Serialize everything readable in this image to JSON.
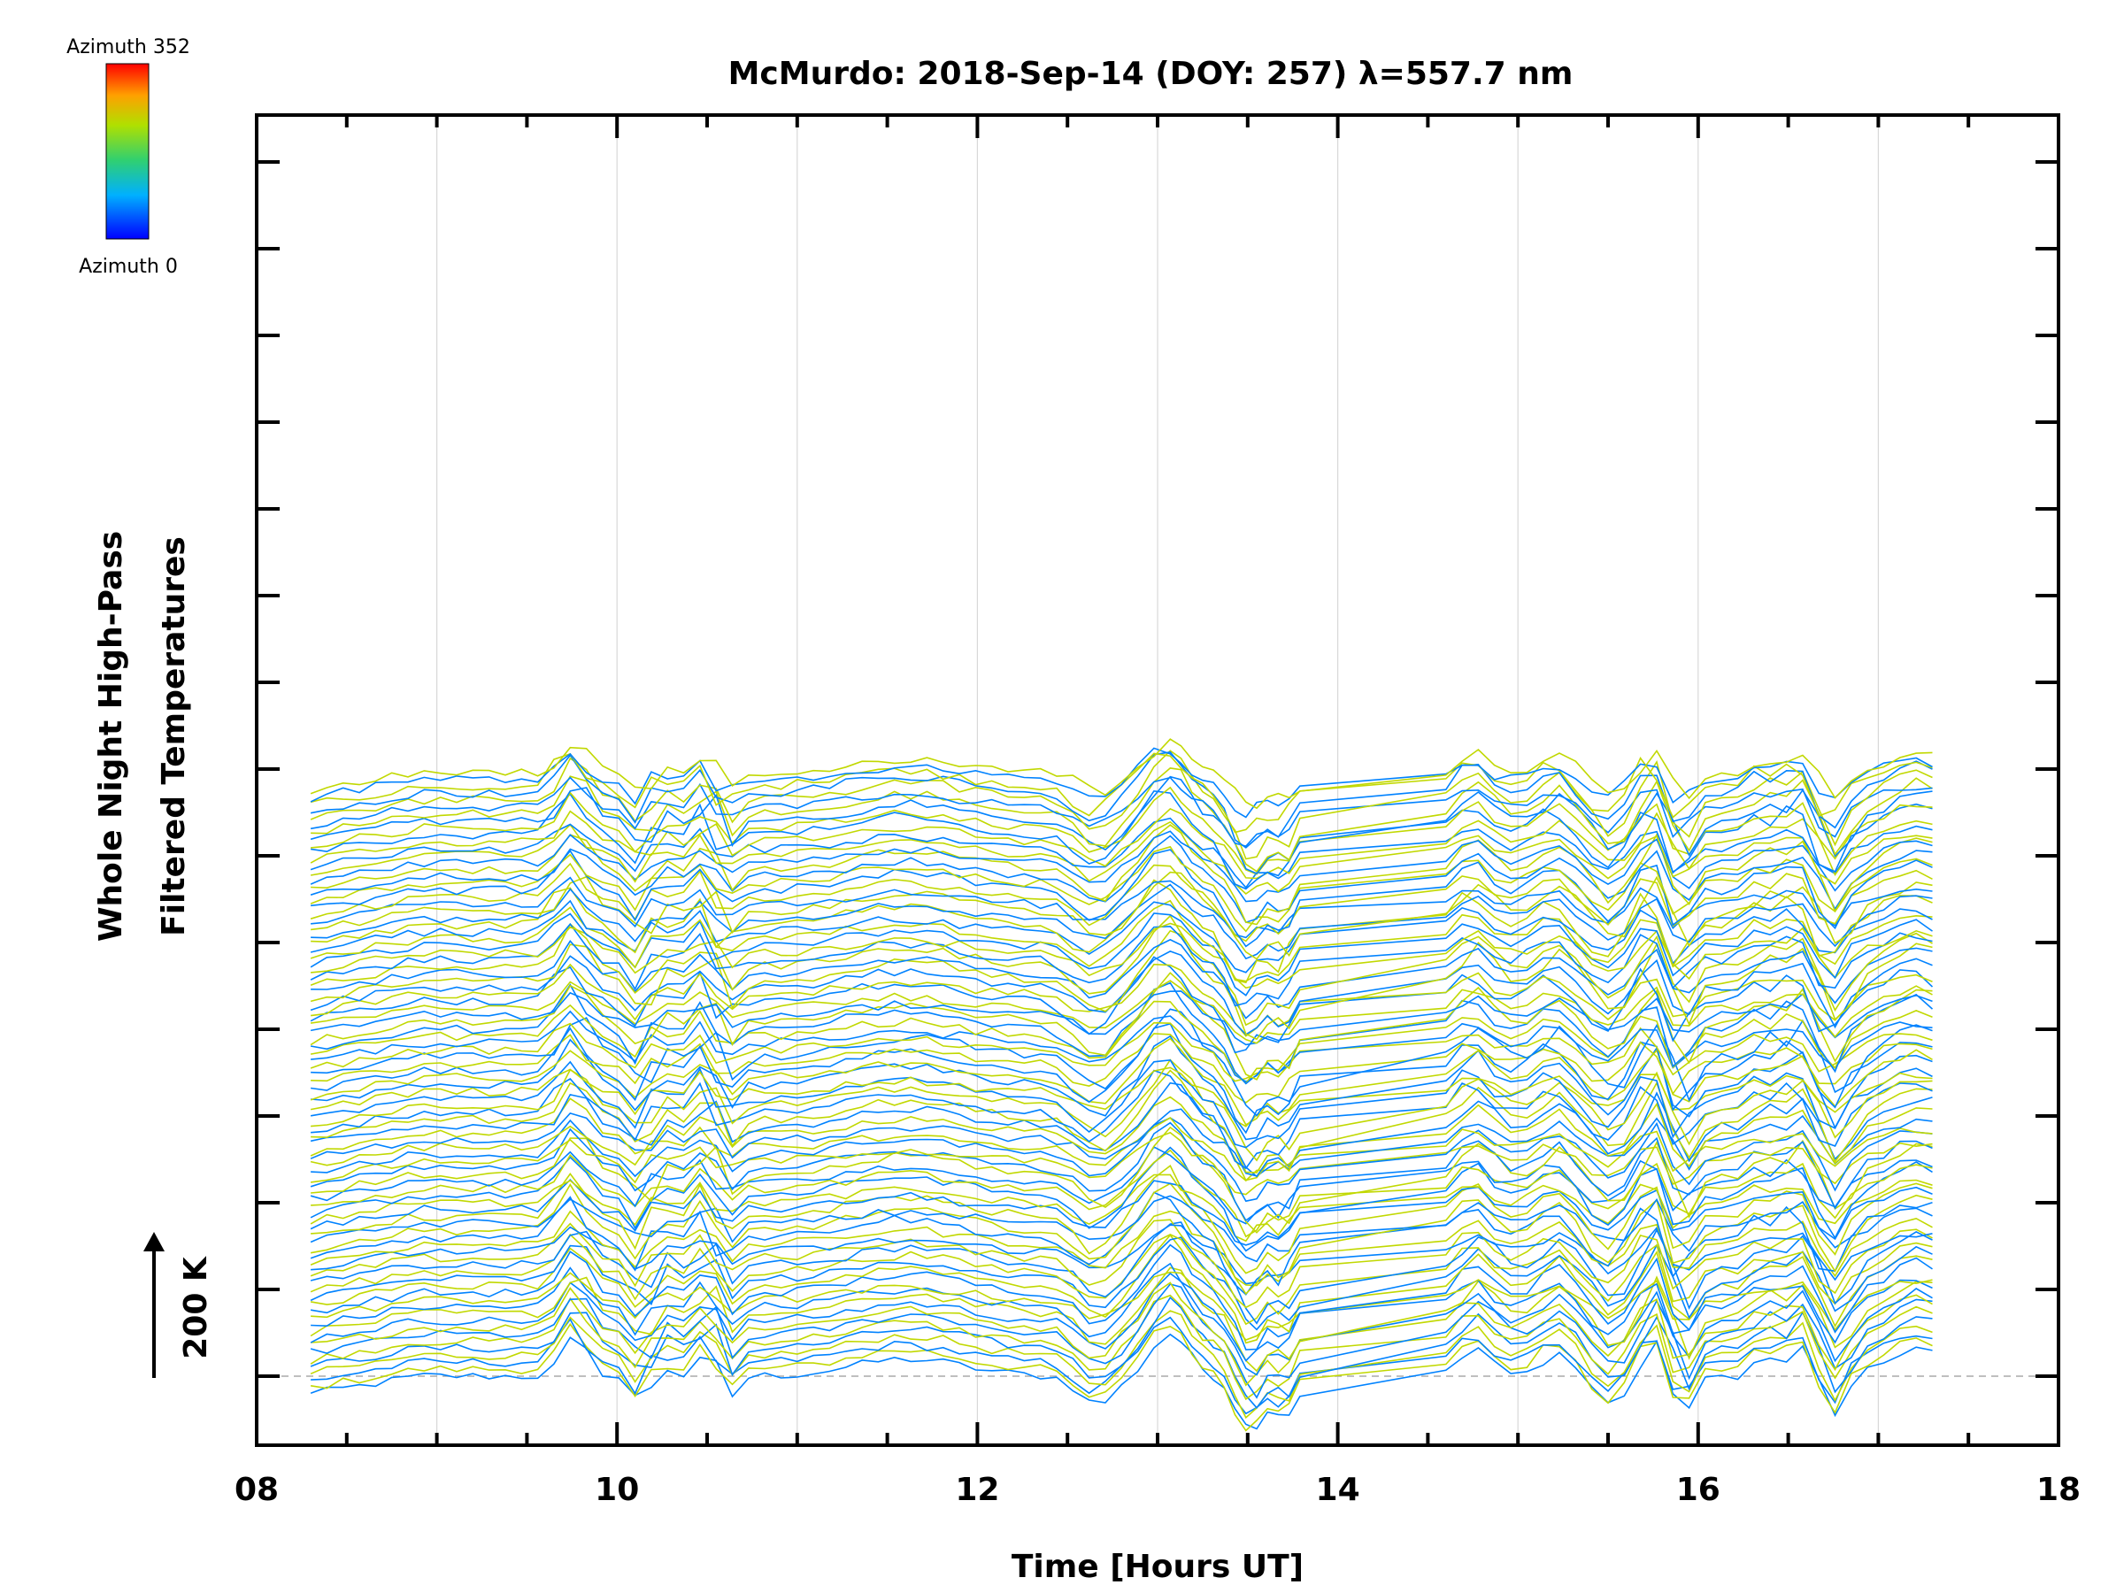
{
  "chart_data": {
    "type": "line",
    "title": "McMurdo: 2018-Sep-14 (DOY: 257) λ=557.7 nm",
    "xlabel": "Time [Hours UT]",
    "ylabel_line1": "Whole Night High-Pass",
    "ylabel_line2": "Filtered Temperatures",
    "scale_label": "200 K",
    "xlim": [
      8,
      18
    ],
    "x_ticks": [
      "08",
      "10",
      "12",
      "14",
      "16",
      "18"
    ],
    "x_tick_values": [
      8,
      10,
      12,
      14,
      16,
      18
    ],
    "colorbar": {
      "top_label": "Azimuth 352",
      "bottom_label": "Azimuth 0"
    },
    "offset_per_series_K": 8,
    "n_series": 88,
    "time_start_hours": 8.3,
    "time_end_hours": 17.3,
    "data_gap_hours": [
      13.75,
      14.6
    ],
    "spectral_colors": [
      "#0000ff",
      "#0090ff",
      "#00d0c0",
      "#30d060",
      "#a0e000",
      "#e0d000",
      "#ff8000",
      "#ff0000"
    ]
  }
}
